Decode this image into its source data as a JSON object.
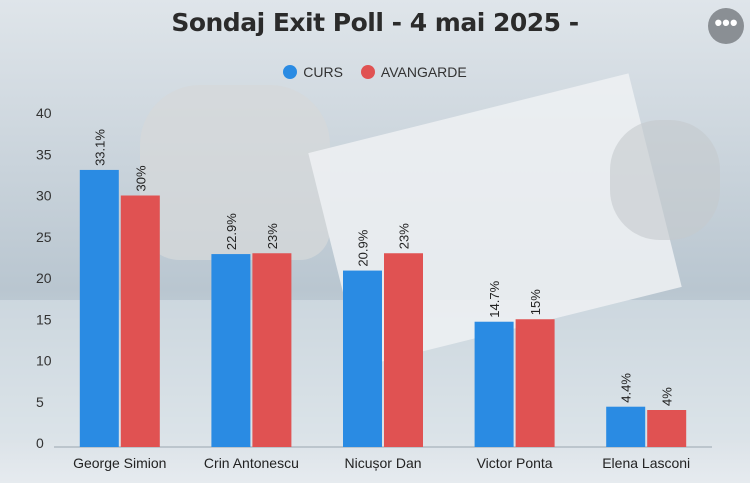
{
  "header": {
    "title": "Sondaj Exit Poll - 4 mai 2025 -",
    "menu_label": "•••"
  },
  "chart_data": {
    "type": "bar",
    "categories": [
      "George Simion",
      "Crin Antonescu",
      "Nicușor Dan",
      "Victor Ponta",
      "Elena Lasconi"
    ],
    "series": [
      {
        "name": "CURS",
        "color": "#2a8be3",
        "values": [
          33.1,
          22.9,
          20.9,
          14.7,
          4.4
        ],
        "labels": [
          "33.1%",
          "22.9%",
          "20.9%",
          "14.7%",
          "4.4%"
        ]
      },
      {
        "name": "AVANGARDE",
        "color": "#e05252",
        "values": [
          30,
          23,
          23,
          15,
          4
        ],
        "labels": [
          "30%",
          "23%",
          "23%",
          "15%",
          "4%"
        ]
      }
    ],
    "yticks": [
      "0",
      "5",
      "10",
      "15",
      "20",
      "25",
      "30",
      "35",
      "40"
    ],
    "ylim": [
      0,
      40
    ],
    "legend_position": "top-center",
    "grid": false
  }
}
